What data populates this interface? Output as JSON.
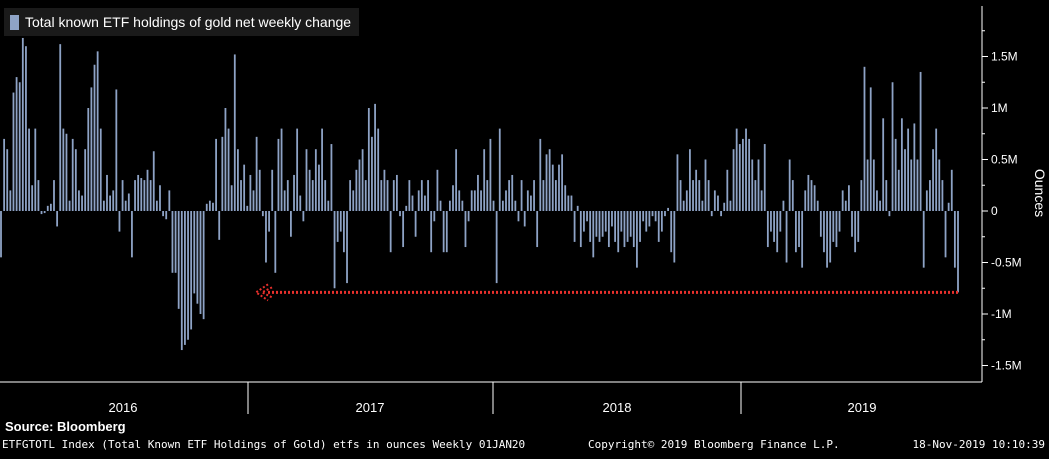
{
  "legend": {
    "label": "Total known ETF holdings of gold net weekly change"
  },
  "source_label": "Source: Bloomberg",
  "footer": {
    "left": "ETFGTOTL Index (Total Known ETF Holdings of Gold) etfs in ounces  Weekly 01JAN20",
    "center": "Copyright© 2019 Bloomberg Finance L.P.",
    "right": "18-Nov-2019 10:10:39"
  },
  "colors": {
    "bar": "#8ea3c6",
    "arrow": "#e8302c",
    "axis": "#ffffff",
    "background": "#000000"
  },
  "chart_data": {
    "type": "bar",
    "ylabel": "Ounces",
    "ylim": [
      -1.65,
      2.0
    ],
    "yticks": [
      {
        "value": 1.5,
        "label": "1.5M"
      },
      {
        "value": 1.0,
        "label": "1M"
      },
      {
        "value": 0.5,
        "label": "0.5M"
      },
      {
        "value": 0,
        "label": "0"
      },
      {
        "value": -0.5,
        "label": "-0.5M"
      },
      {
        "value": -1.0,
        "label": "-1M"
      },
      {
        "value": -1.5,
        "label": "-1.5M"
      }
    ],
    "years": [
      "2016",
      "2017",
      "2018",
      "2019"
    ],
    "grid": false,
    "legend_position": "top-left",
    "annotation": "arrow marking latest weekly change",
    "annotation_value": -0.79,
    "values": [
      -0.45,
      0.7,
      0.6,
      0.2,
      1.15,
      1.3,
      1.25,
      1.68,
      1.6,
      0.8,
      0.25,
      0.8,
      0.3,
      -0.03,
      -0.02,
      0.05,
      0.07,
      0.3,
      -0.15,
      1.62,
      0.8,
      0.75,
      0.1,
      0.7,
      0.6,
      0.2,
      0.15,
      0.6,
      1.0,
      1.2,
      1.42,
      1.55,
      0.8,
      0.1,
      0.35,
      0.15,
      0.2,
      1.18,
      -0.2,
      0.3,
      0.1,
      0.17,
      -0.45,
      0.3,
      0.35,
      0.32,
      0.3,
      0.4,
      0.3,
      0.58,
      0.1,
      0.25,
      -0.05,
      -0.08,
      0.2,
      -0.6,
      -0.6,
      -0.95,
      -1.35,
      -1.3,
      -1.25,
      -1.15,
      -0.8,
      -0.9,
      -1.0,
      -1.05,
      0.07,
      0.1,
      0.08,
      0.7,
      -0.28,
      0.72,
      1.0,
      0.8,
      0.25,
      1.52,
      0.6,
      0.3,
      0.45,
      0.05,
      0.35,
      0.2,
      0.72,
      0.4,
      -0.05,
      -0.5,
      -0.2,
      0.4,
      -0.6,
      0.7,
      0.8,
      0.2,
      0.3,
      -0.25,
      0.35,
      0.8,
      0.15,
      -0.1,
      0.6,
      0.4,
      0.3,
      0.6,
      0.45,
      0.8,
      0.3,
      0.1,
      0.65,
      -0.75,
      -0.3,
      -0.2,
      -0.4,
      -0.7,
      0.3,
      0.2,
      0.4,
      0.5,
      0.6,
      0.3,
      1.0,
      0.72,
      1.04,
      0.8,
      0.3,
      0.4,
      0.3,
      -0.4,
      0.3,
      0.35,
      -0.05,
      -0.35,
      0.05,
      0.3,
      0.15,
      -0.25,
      0.2,
      0.3,
      0.15,
      0.3,
      -0.4,
      -0.1,
      0.4,
      0.1,
      -0.4,
      -0.4,
      0.1,
      0.25,
      0.6,
      0.2,
      0.1,
      -0.35,
      -0.1,
      0.2,
      0.2,
      0.35,
      0.2,
      0.6,
      0.3,
      0.7,
      0.1,
      -0.7,
      0.8,
      0.1,
      0.2,
      0.3,
      0.35,
      0.1,
      -0.1,
      0.3,
      -0.15,
      0.2,
      0.15,
      0.3,
      -0.35,
      0.7,
      0.3,
      0.55,
      0.6,
      0.45,
      0.3,
      0.45,
      0.55,
      0.25,
      0.15,
      0.15,
      -0.3,
      0.05,
      -0.35,
      -0.2,
      -0.1,
      -0.3,
      -0.45,
      -0.25,
      -0.3,
      -0.25,
      -0.2,
      -0.35,
      -0.15,
      -0.3,
      -0.4,
      -0.2,
      -0.35,
      -0.3,
      -0.25,
      -0.35,
      -0.55,
      -0.3,
      -0.1,
      -0.2,
      -0.15,
      -0.05,
      -0.1,
      -0.3,
      -0.2,
      -0.05,
      0.03,
      -0.4,
      -0.5,
      0.55,
      0.3,
      0.1,
      0.2,
      0.6,
      0.3,
      0.4,
      0.3,
      0.1,
      0.5,
      0.3,
      -0.05,
      0.2,
      0.15,
      -0.05,
      0.08,
      0.4,
      0.1,
      0.6,
      0.8,
      0.65,
      0.7,
      0.8,
      0.7,
      0.5,
      0.3,
      0.5,
      0.2,
      0.65,
      -0.35,
      -0.2,
      -0.3,
      -0.4,
      -0.2,
      0.1,
      -0.5,
      0.5,
      0.3,
      -0.4,
      -0.35,
      -0.55,
      0.2,
      0.35,
      0.3,
      0.25,
      0.1,
      -0.25,
      -0.4,
      -0.55,
      -0.5,
      -0.3,
      -0.35,
      -0.2,
      0.2,
      0.1,
      0.25,
      -0.25,
      -0.4,
      -0.3,
      0.3,
      1.4,
      0.5,
      1.2,
      0.5,
      0.2,
      0.1,
      0.9,
      0.3,
      -0.05,
      1.25,
      0.7,
      0.4,
      0.9,
      0.6,
      0.8,
      0.5,
      0.85,
      0.5,
      1.35,
      -0.55,
      0.2,
      0.3,
      0.6,
      0.8,
      0.5,
      0.3,
      -0.45,
      0.08,
      0.4,
      -0.55,
      -0.79
    ]
  }
}
